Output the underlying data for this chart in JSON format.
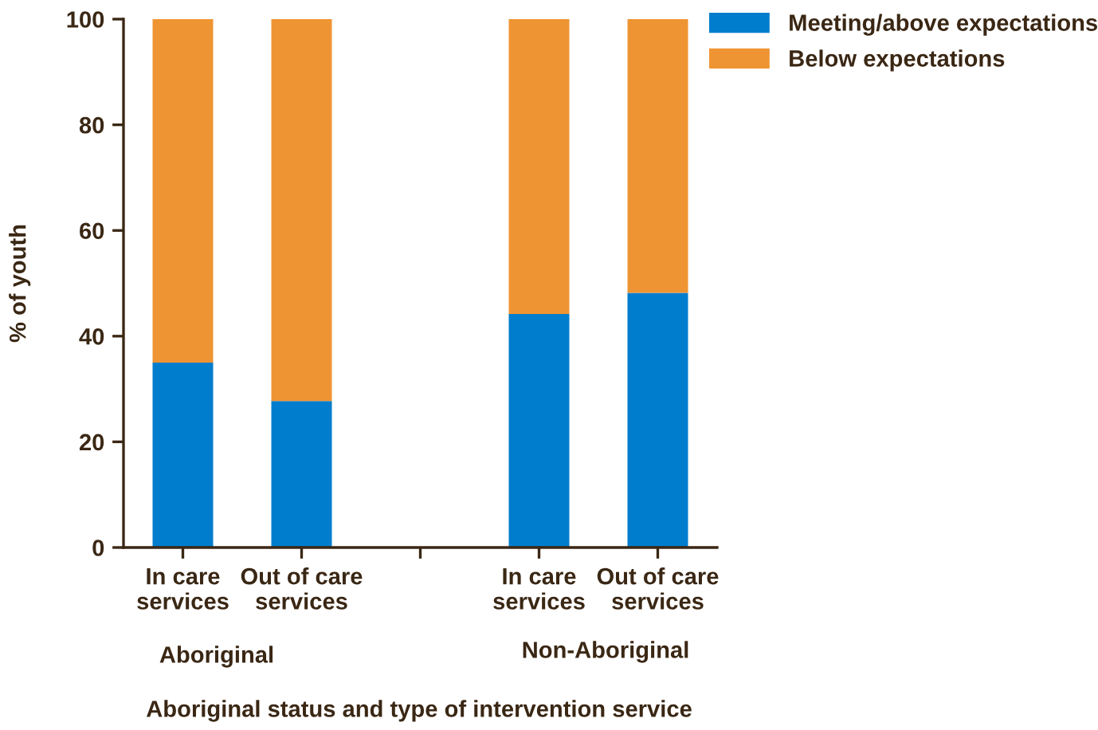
{
  "chart_data": {
    "type": "bar",
    "stacked": true,
    "categories": [
      "In care\nservices",
      "Out of care\nservices",
      null,
      "In care\nservices",
      "Out of care\nservices"
    ],
    "series": [
      {
        "name": "Meeting/above expectations",
        "color": "#007dcd",
        "values": [
          35.0,
          27.7,
          null,
          44.2,
          48.2
        ]
      },
      {
        "name": "Below expectations",
        "color": "#ef9433",
        "values": [
          65.0,
          72.3,
          null,
          55.8,
          51.8
        ]
      }
    ],
    "ylabel": "% of youth",
    "xlabel": "Aboriginal status and type of intervention service",
    "annotations": [
      "Aboriginal",
      "Non-Aboriginal"
    ],
    "ylim": [
      0,
      100
    ],
    "yticks": [
      0,
      20,
      40,
      60,
      80,
      100
    ],
    "grid": false,
    "legend": "top right"
  }
}
